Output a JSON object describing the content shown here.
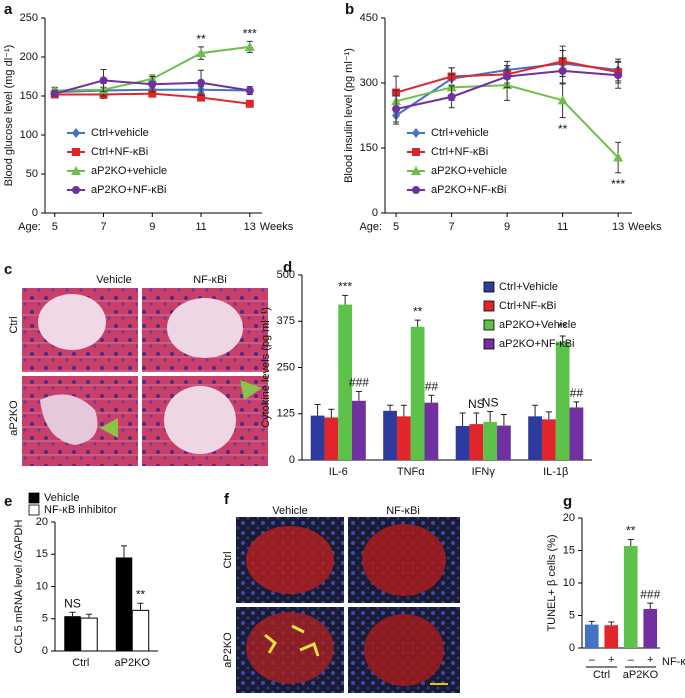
{
  "chart_data": [
    {
      "type": "line",
      "label": "a",
      "ylabel": "Blood glucose level (mg dl⁻¹)",
      "xlabel_prefix": "Age:",
      "xlabel": "Weeks",
      "x": [
        5,
        7,
        9,
        11,
        13
      ],
      "xlim": [
        4.6,
        13.5
      ],
      "xticks": [
        5,
        7,
        9,
        11,
        13
      ],
      "ylim": [
        0,
        250
      ],
      "yticks": [
        0,
        50,
        100,
        150,
        200,
        250
      ],
      "legend": "lower left",
      "series": [
        {
          "name": "Ctrl+vehicle",
          "color": "#4472c4",
          "marker": "diamond",
          "values": [
            155,
            157,
            158,
            158,
            157
          ],
          "errors": [
            4,
            4,
            4,
            4,
            3
          ]
        },
        {
          "name": "Ctrl+NF-κBi",
          "color": "#e0262b",
          "marker": "square",
          "values": [
            152,
            152,
            153,
            148,
            140
          ],
          "errors": [
            4,
            5,
            4,
            4,
            3
          ]
        },
        {
          "name": "aP2KO+vehicle",
          "color": "#6cc04a",
          "marker": "triangle",
          "values": [
            157,
            158,
            172,
            205,
            213
          ],
          "errors": [
            4,
            8,
            5,
            8,
            7
          ],
          "annotations": [
            null,
            null,
            null,
            "**",
            "***"
          ]
        },
        {
          "name": "aP2KO+NF-κBi",
          "color": "#7030a0",
          "marker": "circle",
          "values": [
            153,
            170,
            165,
            167,
            157
          ],
          "errors": [
            4,
            14,
            10,
            16,
            5
          ]
        }
      ]
    },
    {
      "type": "line",
      "label": "b",
      "ylabel": "Blood insulin level (pg ml⁻¹)",
      "xlabel_prefix": "Age:",
      "xlabel": "Weeks",
      "x": [
        5,
        7,
        9,
        11,
        13
      ],
      "xlim": [
        4.6,
        13.5
      ],
      "xticks": [
        5,
        7,
        9,
        11,
        13
      ],
      "ylim": [
        0,
        450
      ],
      "yticks": [
        0,
        150,
        300,
        450
      ],
      "legend": "lower left",
      "series": [
        {
          "name": "Ctrl+vehicle",
          "color": "#4472c4",
          "marker": "diamond",
          "values": [
            225,
            310,
            330,
            345,
            330
          ],
          "errors": [
            20,
            25,
            20,
            30,
            25
          ]
        },
        {
          "name": "Ctrl+NF-κBi",
          "color": "#e0262b",
          "marker": "square",
          "values": [
            278,
            315,
            320,
            350,
            325
          ],
          "errors": [
            38,
            20,
            20,
            35,
            25
          ]
        },
        {
          "name": "aP2KO+vehicle",
          "color": "#6cc04a",
          "marker": "triangle",
          "values": [
            258,
            290,
            295,
            260,
            128
          ],
          "errors": [
            25,
            30,
            35,
            40,
            35
          ],
          "annotations": [
            null,
            null,
            null,
            "**",
            "***"
          ],
          "annotation_side": "below"
        },
        {
          "name": "aP2KO+NF-κBi",
          "color": "#7030a0",
          "marker": "circle",
          "values": [
            240,
            268,
            315,
            328,
            318
          ],
          "errors": [
            30,
            25,
            25,
            30,
            30
          ]
        }
      ]
    },
    {
      "type": "bar",
      "label": "d",
      "ylabel": "Cytokine levels (pg ml⁻¹)",
      "categories": [
        "IL-6",
        "TNFα",
        "IFNγ",
        "IL-1β"
      ],
      "ylim": [
        0,
        500
      ],
      "yticks": [
        0,
        125,
        250,
        375,
        500
      ],
      "legend": "upper right",
      "series": [
        {
          "name": "Ctrl+Vehicle",
          "color": "#2e3b9e",
          "values": [
            120,
            133,
            92,
            118
          ],
          "errors": [
            30,
            15,
            35,
            30
          ]
        },
        {
          "name": "Ctrl+NF-κBi",
          "color": "#e0262b",
          "values": [
            115,
            118,
            97,
            110
          ],
          "errors": [
            22,
            30,
            30,
            20
          ],
          "annotations": [
            null,
            null,
            "NS",
            null
          ]
        },
        {
          "name": "aP2KO+Vehicle",
          "color": "#5cc24a",
          "values": [
            420,
            360,
            103,
            320
          ],
          "errors": [
            25,
            18,
            28,
            15
          ],
          "annotations": [
            "***",
            "**",
            "NS",
            "**"
          ]
        },
        {
          "name": "aP2KO+NF-κBi",
          "color": "#7030a0",
          "values": [
            160,
            155,
            93,
            142
          ],
          "errors": [
            25,
            20,
            30,
            15
          ],
          "annotations": [
            "###",
            "##",
            null,
            "##"
          ]
        }
      ]
    },
    {
      "type": "bar",
      "label": "e",
      "ylabel": "CCL5 mRNA level /GAPDH",
      "categories": [
        "Ctrl",
        "aP2KO"
      ],
      "ylim": [
        0,
        20
      ],
      "yticks": [
        0,
        5,
        10,
        15,
        20
      ],
      "legend": "above",
      "series": [
        {
          "name": "Vehicle",
          "color": "#000000",
          "values": [
            5.4,
            14.5
          ],
          "errors": [
            0.6,
            1.8
          ],
          "annotations": [
            "NS",
            null
          ]
        },
        {
          "name": "NF-κB inhibitor",
          "color": "#ffffff",
          "values": [
            5.1,
            6.3
          ],
          "errors": [
            0.6,
            1.1
          ],
          "annotations": [
            null,
            "**"
          ]
        }
      ]
    },
    {
      "type": "bar",
      "label": "g",
      "ylabel": "TUNEL+ β cells (%)",
      "categories": [
        "–",
        "+",
        "–",
        "+"
      ],
      "groups": [
        "Ctrl",
        "aP2KO"
      ],
      "row_label": "NF-κBi",
      "ylim": [
        0,
        20
      ],
      "yticks": [
        0,
        5,
        10,
        15,
        20
      ],
      "series": [
        {
          "colors": [
            "#4472c4",
            "#e0262b",
            "#5cc24a",
            "#7030a0"
          ],
          "values": [
            3.6,
            3.5,
            15.7,
            6.0
          ],
          "errors": [
            0.5,
            0.5,
            1.0,
            0.9
          ],
          "annotations": [
            null,
            null,
            "**",
            "###"
          ]
        }
      ]
    }
  ],
  "images": {
    "c": {
      "label": "c",
      "columns": [
        "Vehicle",
        "NF-κBi"
      ],
      "rows": [
        "Ctrl",
        "aP2KO"
      ]
    },
    "f": {
      "label": "f",
      "columns": [
        "Vehicle",
        "NF-κBi"
      ],
      "rows": [
        "Ctrl",
        "aP2KO"
      ]
    }
  }
}
